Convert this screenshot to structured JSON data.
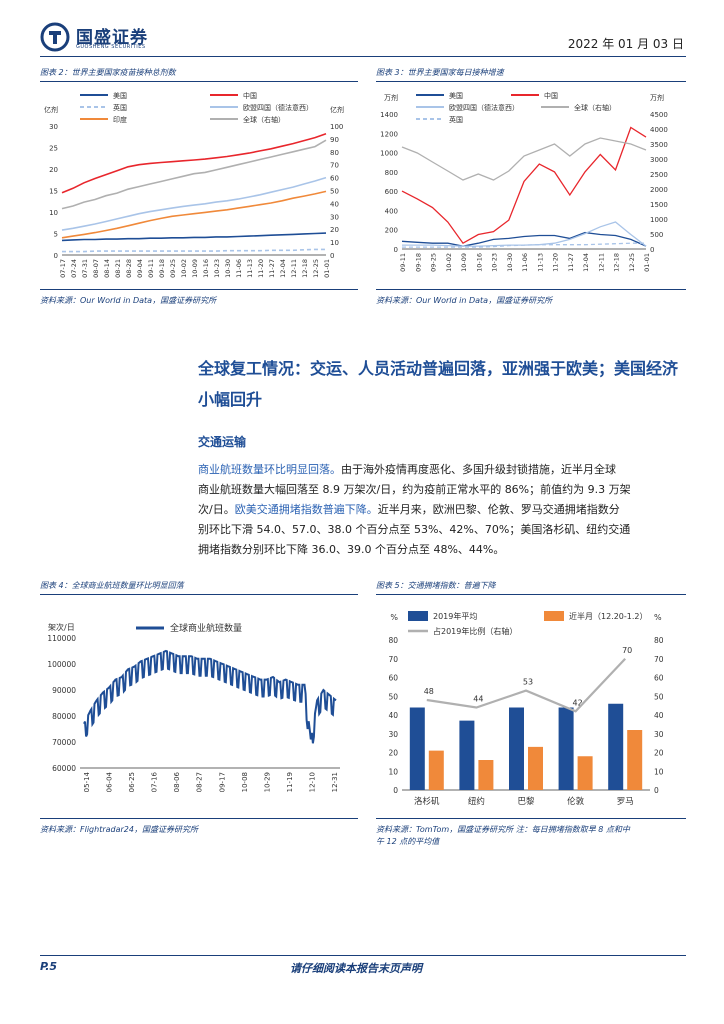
{
  "header": {
    "company_name": "国盛证券",
    "company_sub": "GUOSHENG SECURITIES",
    "date": "2022 年 01 月 03 日"
  },
  "chart2": {
    "caption": "图表 2：世界主要国家疫苗接种总剂数",
    "source": "资料来源：Our World in Data，国盛证券研究所",
    "chart_data": {
      "type": "line",
      "title": "世界主要国家疫苗接种总剂数",
      "ylabel": "亿剂",
      "y2label": "亿剂",
      "ylim": [
        0,
        30
      ],
      "y2lim": [
        0,
        100
      ],
      "yticks": [
        "30",
        "25",
        "20",
        "15",
        "10",
        "5",
        "0"
      ],
      "y2ticks": [
        "100",
        "90",
        "80",
        "70",
        "60",
        "50",
        "40",
        "30",
        "20",
        "10",
        "0"
      ],
      "xticks": [
        "07-17",
        "07-24",
        "07-31",
        "08-07",
        "08-14",
        "08-21",
        "08-28",
        "09-04",
        "09-11",
        "09-18",
        "09-25",
        "10-02",
        "10-09",
        "10-16",
        "10-23",
        "10-30",
        "11-06",
        "11-13",
        "11-20",
        "11-27",
        "12-04",
        "12-11",
        "12-18",
        "12-25",
        "01-01"
      ],
      "legend": [
        "美国",
        "中国",
        "英国",
        "欧盟四国（德法意西）",
        "印度",
        "全球（右轴）"
      ],
      "series": [
        {
          "name": "美国",
          "color": "#1f4e96",
          "dash": false,
          "axis": "left",
          "values": [
            3.4,
            3.5,
            3.6,
            3.6,
            3.7,
            3.7,
            3.8,
            3.8,
            3.9,
            3.9,
            4.0,
            4.0,
            4.1,
            4.1,
            4.2,
            4.2,
            4.3,
            4.4,
            4.5,
            4.6,
            4.7,
            4.8,
            4.9,
            5.0,
            5.1
          ]
        },
        {
          "name": "中国",
          "color": "#e8262c",
          "dash": false,
          "axis": "left",
          "values": [
            14.5,
            15.5,
            16.8,
            17.8,
            18.7,
            19.6,
            20.5,
            21.0,
            21.3,
            21.5,
            21.7,
            21.9,
            22.1,
            22.3,
            22.6,
            22.9,
            23.3,
            23.7,
            24.2,
            24.7,
            25.3,
            25.9,
            26.6,
            27.3,
            28.2
          ]
        },
        {
          "name": "英国",
          "color": "#a9c4e8",
          "dash": true,
          "axis": "left",
          "values": [
            0.8,
            0.8,
            0.8,
            0.9,
            0.9,
            0.9,
            0.9,
            0.9,
            0.9,
            0.9,
            0.9,
            0.9,
            0.9,
            0.9,
            0.9,
            1.0,
            1.0,
            1.0,
            1.0,
            1.1,
            1.1,
            1.1,
            1.2,
            1.3,
            1.3
          ]
        },
        {
          "name": "欧盟四国（德法意西）",
          "color": "#a9c4e8",
          "dash": false,
          "axis": "left",
          "values": [
            5.8,
            6.2,
            6.7,
            7.2,
            7.8,
            8.4,
            9.0,
            9.6,
            10.1,
            10.5,
            10.9,
            11.3,
            11.6,
            11.9,
            12.3,
            12.6,
            13.0,
            13.5,
            14.0,
            14.6,
            15.2,
            15.8,
            16.5,
            17.2,
            18.0
          ]
        },
        {
          "name": "印度",
          "color": "#f0893a",
          "dash": false,
          "axis": "left",
          "values": [
            4.0,
            4.4,
            4.8,
            5.2,
            5.7,
            6.2,
            6.8,
            7.4,
            8.0,
            8.5,
            9.0,
            9.3,
            9.6,
            9.9,
            10.2,
            10.5,
            10.9,
            11.3,
            11.7,
            12.1,
            12.6,
            13.2,
            13.7,
            14.2,
            14.8
          ]
        },
        {
          "name": "全球（右轴）",
          "color": "#b0b0b0",
          "dash": false,
          "axis": "right",
          "values": [
            36,
            38,
            41,
            43,
            46,
            48,
            51,
            53,
            55,
            57,
            59,
            61,
            63,
            64,
            66,
            68,
            70,
            72,
            74,
            76,
            78,
            80,
            82,
            84,
            89
          ]
        }
      ]
    }
  },
  "chart3": {
    "caption": "图表 3：世界主要国家每日接种增速",
    "source": "资料来源：Our World in Data，国盛证券研究所",
    "chart_data": {
      "type": "line",
      "title": "世界主要国家每日接种增速",
      "ylabel": "万剂",
      "y2label": "万剂",
      "ylim": [
        0,
        1400
      ],
      "y2lim": [
        0,
        4500
      ],
      "yticks": [
        "1400",
        "1200",
        "1000",
        "800",
        "600",
        "400",
        "200",
        "0"
      ],
      "y2ticks": [
        "4500",
        "4000",
        "3500",
        "3000",
        "2500",
        "2000",
        "1500",
        "1000",
        "500",
        "0"
      ],
      "xticks": [
        "09-11",
        "09-18",
        "09-25",
        "10-02",
        "10-09",
        "10-16",
        "10-23",
        "10-30",
        "11-06",
        "11-13",
        "11-20",
        "11-27",
        "12-04",
        "12-11",
        "12-18",
        "12-25",
        "01-01"
      ],
      "legend": [
        "美国",
        "中国",
        "欧盟四国（德法意西）",
        "全球（右轴）",
        "英国"
      ],
      "series": [
        {
          "name": "美国",
          "color": "#1f4e96",
          "dash": false,
          "axis": "left",
          "values": [
            80,
            70,
            60,
            60,
            30,
            60,
            100,
            110,
            130,
            140,
            140,
            110,
            170,
            150,
            140,
            100,
            30
          ]
        },
        {
          "name": "中国",
          "color": "#e8262c",
          "dash": false,
          "axis": "left",
          "values": [
            600,
            520,
            430,
            280,
            60,
            150,
            180,
            300,
            700,
            880,
            800,
            560,
            800,
            980,
            820,
            1260,
            1160
          ]
        },
        {
          "name": "欧盟四国（德法意西）",
          "color": "#a9c4e8",
          "dash": false,
          "axis": "left",
          "values": [
            40,
            40,
            40,
            35,
            30,
            30,
            35,
            40,
            40,
            45,
            60,
            100,
            160,
            230,
            280,
            150,
            30
          ]
        },
        {
          "name": "全球（右轴）",
          "color": "#b0b0b0",
          "dash": false,
          "axis": "right",
          "values": [
            3400,
            3200,
            2900,
            2600,
            2300,
            2500,
            2300,
            2600,
            3100,
            3300,
            3500,
            3100,
            3500,
            3700,
            3600,
            3500,
            3300
          ]
        },
        {
          "name": "英国",
          "color": "#a9c4e8",
          "dash": true,
          "axis": "left",
          "values": [
            20,
            20,
            20,
            20,
            20,
            20,
            25,
            35,
            40,
            45,
            45,
            45,
            45,
            50,
            55,
            60,
            60
          ]
        }
      ]
    }
  },
  "section": {
    "heading": "全球复工情况：交运、人员活动普遍回落，亚洲强于欧美；美国经济小幅回升",
    "subheading": "交通运输",
    "para_l1": "商业航班数量环比明显回落。",
    "para_l1b": "由于海外疫情再度恶化、多国升级封锁措施，近半月全球",
    "para_l2": "商业航班数量大幅回落至 8.9 万架次/日，约为疫前正常水平的 86%；前值约为 9.3 万架",
    "para_l3a": "次/日。",
    "para_l3b": "欧美交通拥堵指数普遍下降。",
    "para_l3c": "近半月来，欧洲巴黎、伦敦、罗马交通拥堵指数分",
    "para_l4": "别环比下滑 54.0、57.0、38.0 个百分点至 53%、42%、70%；美国洛杉矶、纽约交通",
    "para_l5": "拥堵指数分别环比下降 36.0、39.0 个百分点至 48%、44%。"
  },
  "chart4": {
    "caption": "图表 4：全球商业航班数量环比明显回落",
    "source": "资料来源：Flightradar24，国盛证券研究所",
    "chart_data": {
      "type": "line",
      "title": "全球商业航班数量",
      "ylabel": "架次/日",
      "ylim": [
        60000,
        110000
      ],
      "yticks": [
        "110000",
        "100000",
        "90000",
        "80000",
        "70000",
        "60000"
      ],
      "xticks": [
        "05-14",
        "06-04",
        "06-25",
        "07-16",
        "08-06",
        "08-27",
        "09-17",
        "10-08",
        "10-29",
        "11-19",
        "12-10",
        "12-31"
      ],
      "legend": [
        "全球商业航班数量"
      ],
      "series": [
        {
          "name": "全球商业航班数量",
          "color": "#1f4e96",
          "values": [
            75000,
            80000,
            84000,
            87000,
            89000,
            92000,
            93000,
            96000,
            97000,
            99000,
            100000,
            101000,
            102000,
            103000,
            102000,
            101000,
            101000,
            101000,
            100000,
            100000,
            100000,
            99000,
            98000,
            97000,
            96000,
            95000,
            94000,
            93000,
            92000,
            92000,
            93000,
            91000,
            92000,
            91000,
            90000,
            90000,
            69000,
            84000,
            88000,
            86000,
            84000
          ]
        }
      ]
    }
  },
  "chart5": {
    "caption": "图表 5：交通拥堵指数：普遍下降",
    "source_line1": "资料来源：TomTom，国盛证券研究所 注：每日拥堵指数取早 8 点和中",
    "source_line2": "午 12 点的平均值",
    "chart_data": {
      "type": "bar",
      "title": "交通拥堵指数",
      "ylabel": "%",
      "y2label": "%",
      "ylim": [
        0,
        80
      ],
      "y2lim": [
        0,
        80
      ],
      "yticks": [
        "80",
        "70",
        "60",
        "50",
        "40",
        "30",
        "20",
        "10",
        "0"
      ],
      "categories": [
        "洛杉矶",
        "纽约",
        "巴黎",
        "伦敦",
        "罗马"
      ],
      "legend": [
        "2019年平均",
        "近半月（12.20-1.2）",
        "占2019年比例（右轴）"
      ],
      "series": [
        {
          "name": "2019年平均",
          "color": "#1f4e96",
          "values": [
            44,
            37,
            44,
            44,
            46
          ]
        },
        {
          "name": "近半月（12.20-1.2）",
          "color": "#f0893a",
          "values": [
            21,
            16,
            23,
            18,
            32
          ]
        },
        {
          "name": "占2019年比例（右轴）",
          "color": "#b0b0b0",
          "values": [
            48,
            44,
            53,
            42,
            70
          ],
          "labels": [
            "48",
            "44",
            "53",
            "42",
            "70"
          ]
        }
      ]
    }
  },
  "footer": {
    "page": "P.5",
    "notice": "请仔细阅读本报告末页声明"
  }
}
